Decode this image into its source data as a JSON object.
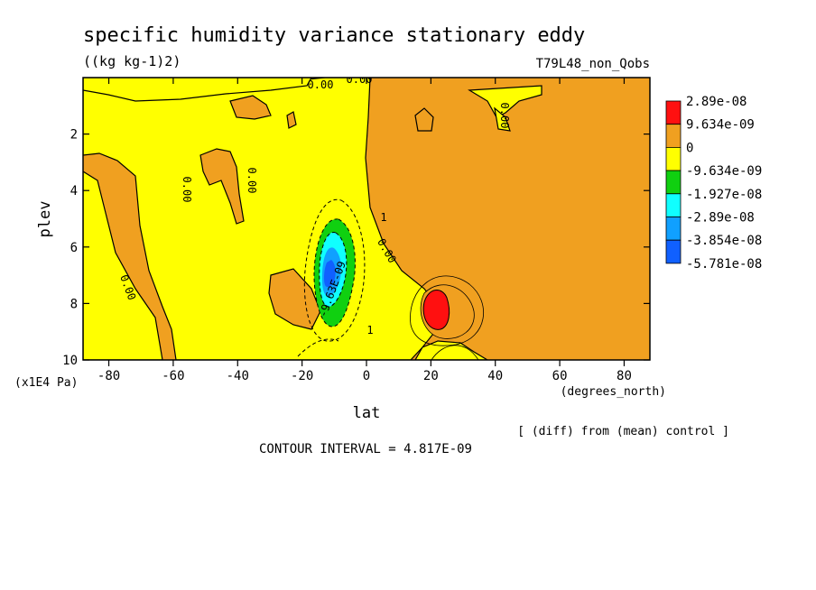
{
  "chart_data": {
    "type": "contour",
    "title": "specific humidity variance stationary eddy",
    "units": "((kg kg-1)2)",
    "run_label": "T79L48_non_Qobs",
    "xlabel": "lat",
    "xunits": "(degrees_north)",
    "ylabel": "plev",
    "yunits": "(x1E4 Pa)",
    "xlim": [
      -88,
      88
    ],
    "ylim": [
      10,
      0
    ],
    "x_ticks": [
      -80,
      -60,
      -40,
      -20,
      0,
      20,
      40,
      60,
      80
    ],
    "y_ticks": [
      2,
      4,
      6,
      8,
      10
    ],
    "contour_interval_text": "CONTOUR INTERVAL = 4.817E-09",
    "note": "[ (diff) from (mean) control ]",
    "contour_labels": [
      "0.00",
      "0.00",
      "0.00",
      "0.00",
      "0.00",
      "0.00",
      "1",
      "1",
      "-9.63E-09"
    ],
    "legend": {
      "labels": [
        "2.89e-08",
        "9.634e-09",
        "0",
        "-9.634e-09",
        "-1.927e-08",
        "-2.89e-08",
        "-3.854e-08",
        "-5.781e-08"
      ],
      "colors": [
        "#ff1010",
        "#f0a020",
        "#ffff00",
        "#10d010",
        "#10ffff",
        "#10a0ff",
        "#1060ff"
      ]
    },
    "features": [
      {
        "name": "negative-minimum",
        "lat": -10,
        "plev": 7.0,
        "level": "below -3.854e-08"
      },
      {
        "name": "positive-maximum",
        "lat": 22,
        "plev": 8.2,
        "level": "above 2.89e-08"
      }
    ]
  }
}
